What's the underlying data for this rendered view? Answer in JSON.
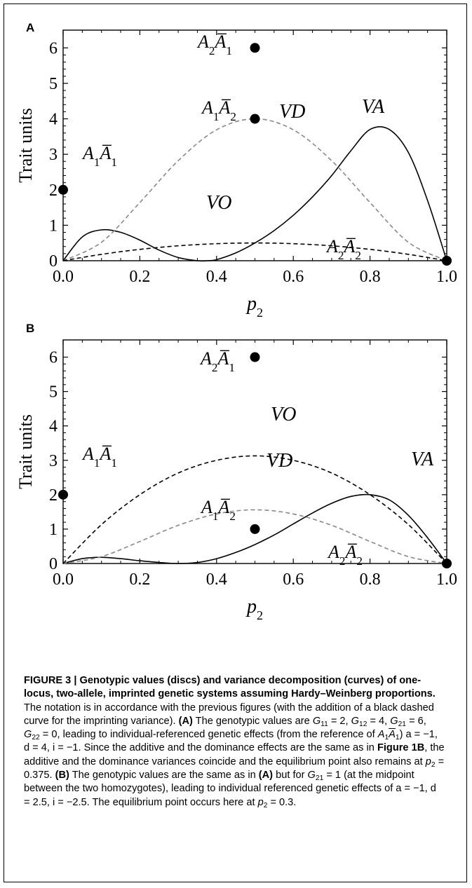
{
  "chart_data": [
    {
      "panel": "A",
      "type": "line",
      "xlabel": "p2",
      "ylabel": "Trait units",
      "xlim": [
        0,
        1
      ],
      "ylim": [
        0,
        6.5
      ],
      "x_ticks": [
        "0.0",
        "0.2",
        "0.4",
        "0.6",
        "0.8",
        "1.0"
      ],
      "y_ticks": [
        "0",
        "1",
        "2",
        "3",
        "4",
        "5",
        "6"
      ],
      "grid": false,
      "genotype_points": [
        {
          "label": "A1Ā1",
          "x": 0.0,
          "y": 2
        },
        {
          "label": "A1Ā2",
          "x": 0.5,
          "y": 4
        },
        {
          "label": "A2Ā1",
          "x": 0.5,
          "y": 6
        },
        {
          "label": "A2Ā2",
          "x": 1.0,
          "y": 0
        }
      ],
      "series": [
        {
          "name": "VA",
          "style": "solid",
          "color": "#000000",
          "x": [
            0.0,
            0.05,
            0.1,
            0.15,
            0.2,
            0.25,
            0.3,
            0.35,
            0.375,
            0.4,
            0.45,
            0.5,
            0.55,
            0.6,
            0.65,
            0.7,
            0.75,
            0.8,
            0.85,
            0.9,
            0.95,
            1.0
          ],
          "values": [
            0.0,
            0.67,
            0.87,
            0.8,
            0.58,
            0.3,
            0.09,
            0.0,
            0.0,
            0.03,
            0.22,
            0.5,
            0.85,
            1.28,
            1.8,
            2.4,
            3.1,
            3.7,
            3.7,
            3.05,
            1.7,
            0.0
          ]
        },
        {
          "name": "VD",
          "style": "dashed",
          "color": "#888888",
          "x": [
            0.0,
            0.1,
            0.2,
            0.3,
            0.4,
            0.5,
            0.6,
            0.7,
            0.8,
            0.9,
            1.0
          ],
          "values": [
            0.0,
            0.52,
            1.64,
            2.82,
            3.69,
            4.0,
            3.69,
            2.82,
            1.64,
            0.52,
            0.0
          ]
        },
        {
          "name": "VO",
          "style": "dashed",
          "color": "#000000",
          "x": [
            0.0,
            0.1,
            0.2,
            0.3,
            0.4,
            0.5,
            0.6,
            0.7,
            0.8,
            0.9,
            1.0
          ],
          "values": [
            0.0,
            0.18,
            0.32,
            0.42,
            0.48,
            0.5,
            0.48,
            0.42,
            0.32,
            0.18,
            0.0
          ]
        }
      ]
    },
    {
      "panel": "B",
      "type": "line",
      "xlabel": "p2",
      "ylabel": "Trait units",
      "xlim": [
        0,
        1
      ],
      "ylim": [
        0,
        6.5
      ],
      "x_ticks": [
        "0.0",
        "0.2",
        "0.4",
        "0.6",
        "0.8",
        "1.0"
      ],
      "y_ticks": [
        "0",
        "1",
        "2",
        "3",
        "4",
        "5",
        "6"
      ],
      "grid": false,
      "genotype_points": [
        {
          "label": "A1Ā1",
          "x": 0.0,
          "y": 2
        },
        {
          "label": "A1Ā2",
          "x": 0.5,
          "y": 1
        },
        {
          "label": "A2Ā1",
          "x": 0.5,
          "y": 6
        },
        {
          "label": "A2Ā2",
          "x": 1.0,
          "y": 0
        }
      ],
      "series": [
        {
          "name": "VA",
          "style": "solid",
          "color": "#000000",
          "x": [
            0.0,
            0.05,
            0.1,
            0.15,
            0.2,
            0.25,
            0.3,
            0.35,
            0.4,
            0.45,
            0.5,
            0.55,
            0.6,
            0.65,
            0.7,
            0.75,
            0.8,
            0.85,
            0.9,
            0.95,
            1.0
          ],
          "values": [
            0.0,
            0.14,
            0.18,
            0.14,
            0.08,
            0.03,
            0.0,
            0.03,
            0.14,
            0.32,
            0.55,
            0.83,
            1.15,
            1.47,
            1.75,
            1.95,
            2.0,
            1.85,
            1.4,
            0.75,
            0.0
          ]
        },
        {
          "name": "VD",
          "style": "dashed",
          "color": "#888888",
          "x": [
            0.0,
            0.1,
            0.2,
            0.3,
            0.4,
            0.5,
            0.6,
            0.7,
            0.8,
            0.9,
            1.0
          ],
          "values": [
            0.0,
            0.2,
            0.64,
            1.11,
            1.44,
            1.56,
            1.44,
            1.11,
            0.64,
            0.2,
            0.0
          ]
        },
        {
          "name": "VO",
          "style": "dashed",
          "color": "#000000",
          "x": [
            0.0,
            0.1,
            0.2,
            0.3,
            0.4,
            0.5,
            0.6,
            0.7,
            0.8,
            0.9,
            1.0
          ],
          "values": [
            0.0,
            1.13,
            2.0,
            2.63,
            3.0,
            3.13,
            3.0,
            2.63,
            2.0,
            1.13,
            0.0
          ]
        }
      ]
    }
  ],
  "caption": {
    "heading": "FIGURE 3 | Genotypic values (discs) and variance decomposition (curves) of one-locus, two-allele, imprinted genetic systems assuming Hardy–Weinberg proportions.",
    "t1": " The notation is in accordance with the previous figures (with the addition of a black dashed curve for the imprinting variance). ",
    "a_label": "(A)",
    "t2": " The genotypic values are ",
    "g11": "= 2, ",
    "g12": "= 4, ",
    "g21": "= 6, ",
    "g22": "= 0, leading to individual-referenced genetic effects (from the reference of ",
    "a_vals": ") a = −1, d = 4, i = −1. Since the additive and the dominance effects are the same as in ",
    "fig1b": "Figure 1B",
    "t3": ", the additive and the dominance variances coincide and the equilibrium point also remains at ",
    "eq_a": "= 0.375. ",
    "b_label": "(B)",
    "t4": " The genotypic values are the same as in ",
    "a_ref": "(A)",
    "t5": " but for ",
    "g21b": "= 1 (at the midpoint between the two homozygotes), leading to individual referenced genetic effects of a = −1, d = 2.5, i = −2.5. The equilibrium point occurs here at ",
    "eq_b": "= 0.3."
  }
}
